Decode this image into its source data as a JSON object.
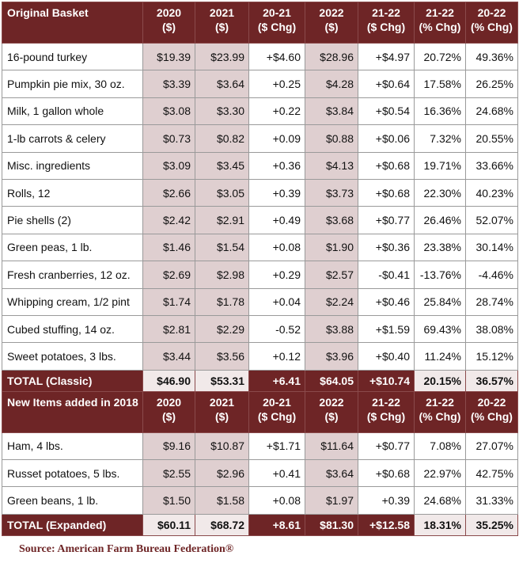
{
  "header1": {
    "label": "Original Basket",
    "cols": [
      {
        "line1": "2020",
        "line2": "($)"
      },
      {
        "line1": "2021",
        "line2": "($)"
      },
      {
        "line1": "20-21",
        "line2": "($ Chg)"
      },
      {
        "line1": "2022",
        "line2": "($)"
      },
      {
        "line1": "21-22",
        "line2": "($ Chg)"
      },
      {
        "line1": "21-22",
        "line2": "(% Chg)"
      },
      {
        "line1": "20-22",
        "line2": "(% Chg)"
      }
    ]
  },
  "rows1": [
    [
      "16-pound turkey",
      "$19.39",
      "$23.99",
      "+$4.60",
      "$28.96",
      "+$4.97",
      "20.72%",
      "49.36%"
    ],
    [
      "Pumpkin pie mix, 30 oz.",
      "$3.39",
      "$3.64",
      "+0.25",
      "$4.28",
      "+$0.64",
      "17.58%",
      "26.25%"
    ],
    [
      "Milk, 1 gallon whole",
      "$3.08",
      "$3.30",
      "+0.22",
      "$3.84",
      "+$0.54",
      "16.36%",
      "24.68%"
    ],
    [
      "1-lb carrots & celery",
      "$0.73",
      "$0.82",
      "+0.09",
      "$0.88",
      "+$0.06",
      "7.32%",
      "20.55%"
    ],
    [
      "Misc. ingredients",
      "$3.09",
      "$3.45",
      "+0.36",
      "$4.13",
      "+$0.68",
      "19.71%",
      "33.66%"
    ],
    [
      "Rolls, 12",
      "$2.66",
      "$3.05",
      "+0.39",
      "$3.73",
      "+$0.68",
      "22.30%",
      "40.23%"
    ],
    [
      "Pie shells (2)",
      "$2.42",
      "$2.91",
      "+0.49",
      "$3.68",
      "+$0.77",
      "26.46%",
      "52.07%"
    ],
    [
      "Green peas, 1 lb.",
      "$1.46",
      "$1.54",
      "+0.08",
      "$1.90",
      "+$0.36",
      "23.38%",
      "30.14%"
    ],
    [
      "Fresh cranberries, 12 oz.",
      "$2.69",
      "$2.98",
      "+0.29",
      "$2.57",
      "-$0.41",
      "-13.76%",
      "-4.46%"
    ],
    [
      "Whipping cream, 1/2 pint",
      "$1.74",
      "$1.78",
      "+0.04",
      "$2.24",
      "+$0.46",
      "25.84%",
      "28.74%"
    ],
    [
      "Cubed stuffing, 14 oz.",
      "$2.81",
      "$2.29",
      "-0.52",
      "$3.88",
      "+$1.59",
      "69.43%",
      "38.08%"
    ],
    [
      "Sweet potatoes, 3 lbs.",
      "$3.44",
      "$3.56",
      "+0.12",
      "$3.96",
      "+$0.40",
      "11.24%",
      "15.12%"
    ]
  ],
  "total1": [
    "TOTAL (Classic)",
    "$46.90",
    "$53.31",
    "+6.41",
    "$64.05",
    "+$10.74",
    "20.15%",
    "36.57%"
  ],
  "header2": {
    "label": "New Items added in 2018",
    "cols": [
      {
        "line1": "2020",
        "line2": "($)"
      },
      {
        "line1": "2021",
        "line2": "($)"
      },
      {
        "line1": "20-21",
        "line2": "($ Chg)"
      },
      {
        "line1": "2022",
        "line2": "($)"
      },
      {
        "line1": "21-22",
        "line2": "($ Chg)"
      },
      {
        "line1": "21-22",
        "line2": "(% Chg)"
      },
      {
        "line1": "20-22",
        "line2": "(% Chg)"
      }
    ]
  },
  "rows2": [
    [
      "Ham, 4 lbs.",
      "$9.16",
      "$10.87",
      "+$1.71",
      "$11.64",
      "+$0.77",
      "7.08%",
      "27.07%"
    ],
    [
      "Russet potatoes, 5 lbs.",
      "$2.55",
      "$2.96",
      "+0.41",
      "$3.64",
      "+$0.68",
      "22.97%",
      "42.75%"
    ],
    [
      "Green beans, 1 lb.",
      "$1.50",
      "$1.58",
      "+0.08",
      "$1.97",
      "+0.39",
      "24.68%",
      "31.33%"
    ]
  ],
  "total2": [
    "TOTAL (Expanded)",
    "$60.11",
    "$68.72",
    "+8.61",
    "$81.30",
    "+$12.58",
    "18.31%",
    "35.25%"
  ],
  "source": "Source: American Farm Bureau Federation®",
  "colors": {
    "header_bg": "#6e2526",
    "shaded_cell": "#dfcfd0",
    "light_total_cell": "#f1e9e9"
  }
}
